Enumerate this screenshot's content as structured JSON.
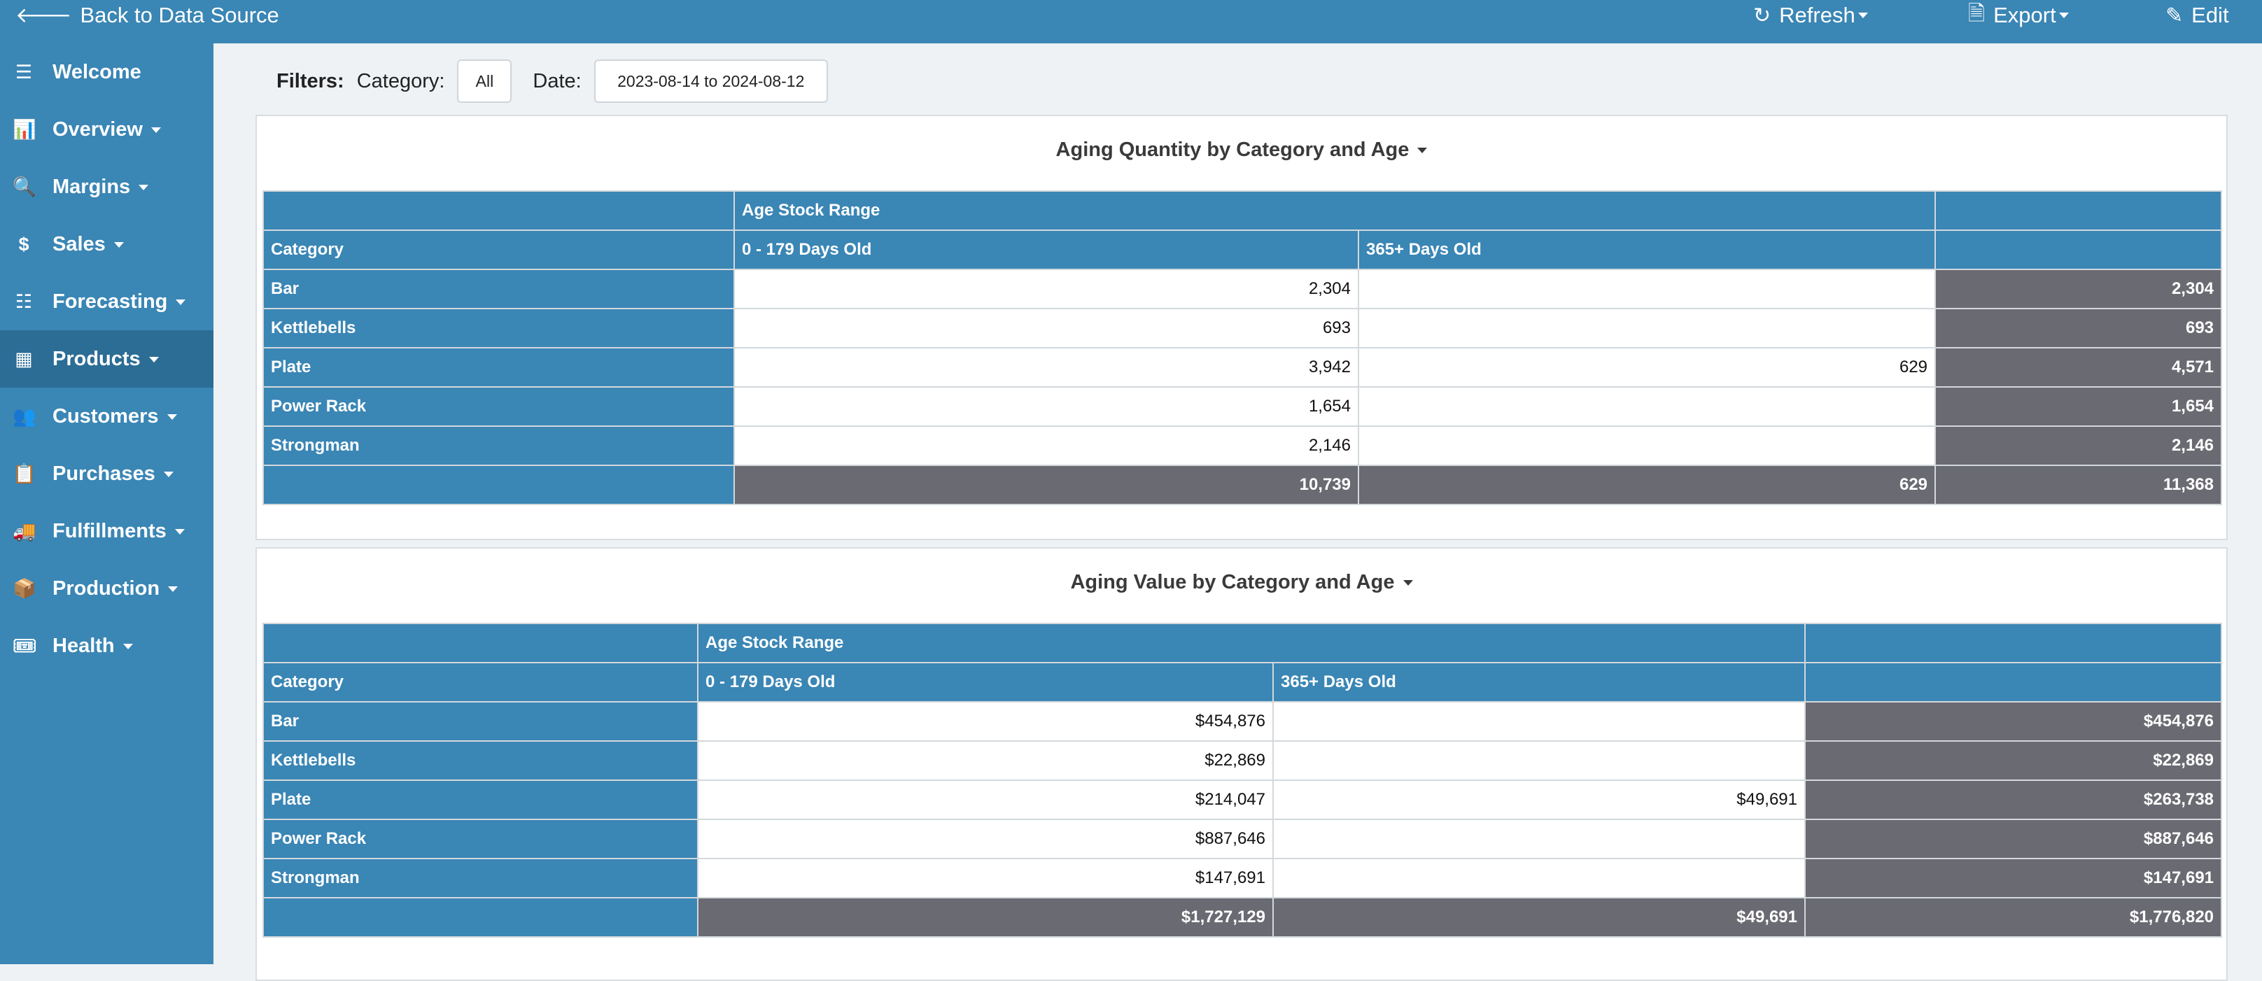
{
  "topbar": {
    "back_label": "Back to Data Source",
    "refresh_label": "Refresh",
    "export_label": "Export",
    "edit_label": "Edit"
  },
  "sidebar": {
    "items": [
      {
        "label": "Welcome",
        "icon": "menu-icon"
      },
      {
        "label": "Overview",
        "icon": "bar-chart-icon"
      },
      {
        "label": "Margins",
        "icon": "magnifier-icon"
      },
      {
        "label": "Sales",
        "icon": "dollar-icon"
      },
      {
        "label": "Forecasting",
        "icon": "database-icon"
      },
      {
        "label": "Products",
        "icon": "boxes-icon"
      },
      {
        "label": "Customers",
        "icon": "users-icon"
      },
      {
        "label": "Purchases",
        "icon": "clipboard-icon"
      },
      {
        "label": "Fulfillments",
        "icon": "truck-icon"
      },
      {
        "label": "Production",
        "icon": "box-open-icon"
      },
      {
        "label": "Health",
        "icon": "ticket-icon"
      }
    ],
    "active": "Products"
  },
  "filters": {
    "label": "Filters:",
    "category_label": "Category:",
    "category_value": "All",
    "date_label": "Date:",
    "date_value": "2023-08-14 to 2024-08-12"
  },
  "quantity_table": {
    "title": "Aging Quantity by Category and Age",
    "group_header": "Age Stock Range",
    "row_header": "Category",
    "col1": "0 - 179 Days Old",
    "col2": "365+ Days Old",
    "rows": [
      {
        "category": "Bar",
        "c1": "2,304",
        "c2": "",
        "total": "2,304"
      },
      {
        "category": "Kettlebells",
        "c1": "693",
        "c2": "",
        "total": "693"
      },
      {
        "category": "Plate",
        "c1": "3,942",
        "c2": "629",
        "total": "4,571"
      },
      {
        "category": "Power Rack",
        "c1": "1,654",
        "c2": "",
        "total": "1,654"
      },
      {
        "category": "Strongman",
        "c1": "2,146",
        "c2": "",
        "total": "2,146"
      }
    ],
    "totals": {
      "c1": "10,739",
      "c2": "629",
      "total": "11,368"
    }
  },
  "value_table": {
    "title": "Aging Value by Category and Age",
    "group_header": "Age Stock Range",
    "row_header": "Category",
    "col1": "0 - 179 Days Old",
    "col2": "365+ Days Old",
    "rows": [
      {
        "category": "Bar",
        "c1": "$454,876",
        "c2": "",
        "total": "$454,876"
      },
      {
        "category": "Kettlebells",
        "c1": "$22,869",
        "c2": "",
        "total": "$22,869"
      },
      {
        "category": "Plate",
        "c1": "$214,047",
        "c2": "$49,691",
        "total": "$263,738"
      },
      {
        "category": "Power Rack",
        "c1": "$887,646",
        "c2": "",
        "total": "$887,646"
      },
      {
        "category": "Strongman",
        "c1": "$147,691",
        "c2": "",
        "total": "$147,691"
      }
    ],
    "totals": {
      "c1": "$1,727,129",
      "c2": "$49,691",
      "total": "$1,776,820"
    }
  }
}
